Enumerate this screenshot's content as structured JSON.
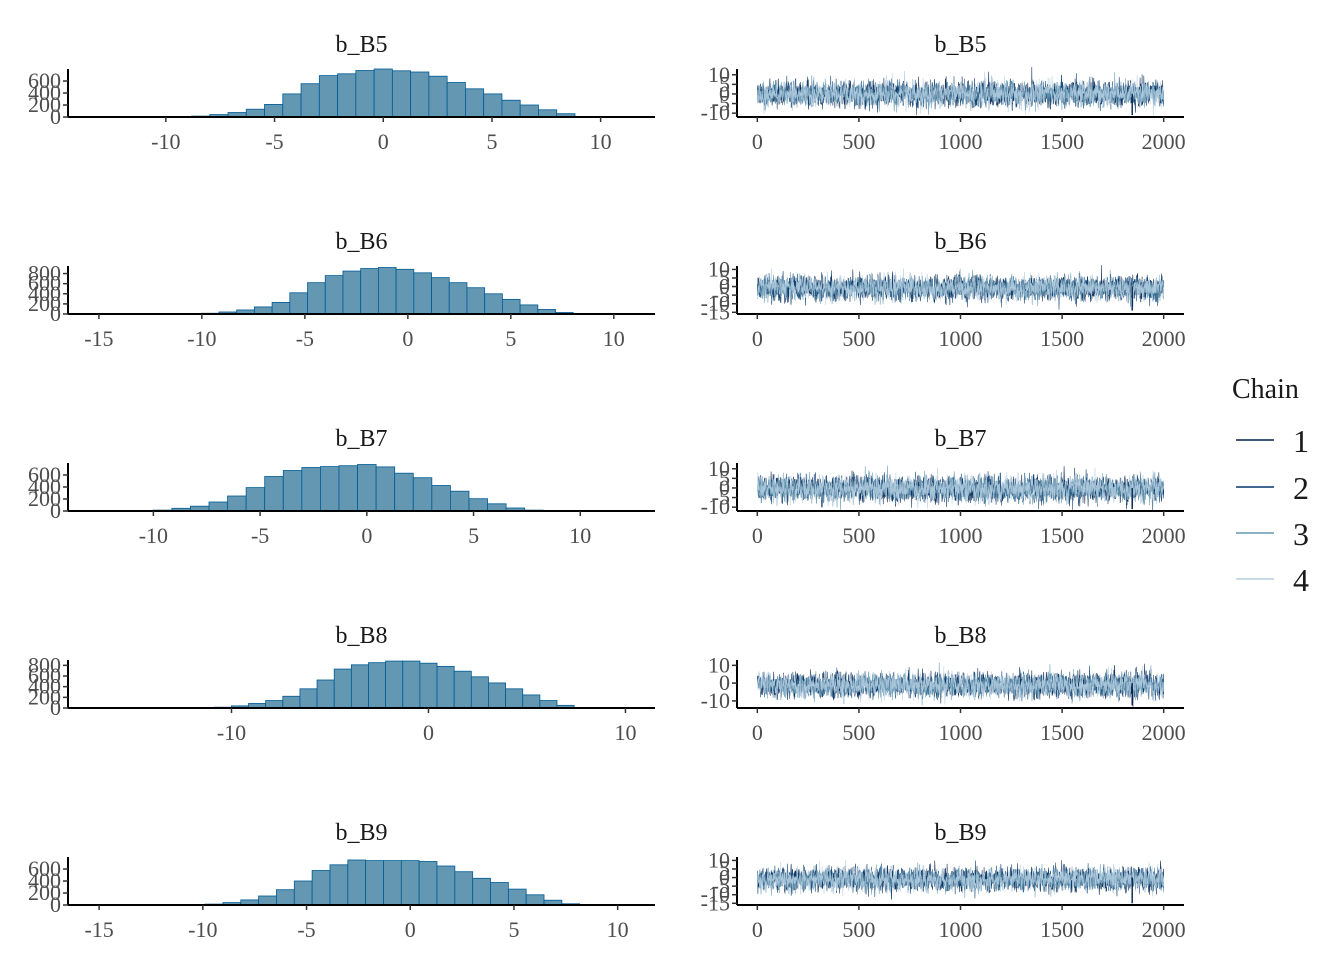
{
  "colors": {
    "bar_fill": "#6497b1",
    "bar_stroke": "#005b96",
    "chain_colors": [
      "#011f4b",
      "#03396c",
      "#6497b1",
      "#b3cde0"
    ]
  },
  "legend": {
    "title": "Chain",
    "labels": [
      "1",
      "2",
      "3",
      "4"
    ]
  },
  "chart_data": [
    {
      "type": "bar",
      "panel": "histogram",
      "title": "b_B5",
      "xlim": [
        -14.5,
        12.5
      ],
      "ylim": [
        0,
        800
      ],
      "xticks": [
        -10,
        -5,
        0,
        5,
        10
      ],
      "xtick_labels": [
        "-10",
        "-5",
        "0",
        "5",
        "10"
      ],
      "yticks": [
        0,
        200,
        400,
        600
      ],
      "ytick_labels": [
        "0",
        "200",
        "400",
        "600"
      ],
      "bin_width": 0.84,
      "bin_centers": [
        -8.4,
        -7.56,
        -6.72,
        -5.88,
        -5.04,
        -4.2,
        -3.36,
        -2.52,
        -1.68,
        -0.84,
        0,
        0.84,
        1.68,
        2.52,
        3.36,
        4.2,
        5.04,
        5.88,
        6.72,
        7.56,
        8.4
      ],
      "values": [
        15,
        40,
        75,
        130,
        210,
        385,
        555,
        690,
        720,
        775,
        800,
        770,
        750,
        680,
        575,
        470,
        385,
        280,
        200,
        120,
        55
      ]
    },
    {
      "type": "line",
      "panel": "trace",
      "title": "b_B5",
      "xlim": [
        -100,
        2100
      ],
      "ylim": [
        -12,
        13
      ],
      "xticks": [
        0,
        500,
        1000,
        1500,
        2000
      ],
      "xtick_labels": [
        "0",
        "500",
        "1000",
        "1500",
        "2000"
      ],
      "yticks": [
        -10,
        -5,
        0,
        5,
        10
      ],
      "ytick_labels": [
        "-10",
        "-5",
        "0",
        "5",
        "10"
      ],
      "series": [
        {
          "name": "1",
          "mean": 0.2,
          "sd": 3.1,
          "n": 2000,
          "seed": 11
        },
        {
          "name": "2",
          "mean": 0.0,
          "sd": 3.1,
          "n": 2000,
          "seed": 12
        },
        {
          "name": "3",
          "mean": -0.1,
          "sd": 3.1,
          "n": 2000,
          "seed": 13
        },
        {
          "name": "4",
          "mean": 0.1,
          "sd": 3.1,
          "n": 2000,
          "seed": 14
        }
      ],
      "spike": {
        "x": 1845,
        "y": -11
      }
    },
    {
      "type": "bar",
      "panel": "histogram",
      "title": "b_B6",
      "xlim": [
        -16.5,
        12
      ],
      "ylim": [
        0,
        950
      ],
      "xticks": [
        -15,
        -10,
        -5,
        0,
        5,
        10
      ],
      "xtick_labels": [
        "-15",
        "-10",
        "-5",
        "0",
        "5",
        "10"
      ],
      "yticks": [
        0,
        200,
        400,
        600,
        800
      ],
      "ytick_labels": [
        "0",
        "200",
        "400",
        "600",
        "800"
      ],
      "bin_width": 0.86,
      "bin_centers": [
        -9.6,
        -8.74,
        -7.88,
        -7.02,
        -6.16,
        -5.3,
        -4.44,
        -3.58,
        -2.72,
        -1.86,
        -1.0,
        -0.14,
        0.72,
        1.58,
        2.44,
        3.3,
        4.16,
        5.02,
        5.88,
        6.74,
        7.6
      ],
      "values": [
        15,
        40,
        80,
        140,
        230,
        420,
        620,
        760,
        850,
        900,
        920,
        885,
        815,
        720,
        620,
        520,
        400,
        290,
        180,
        90,
        30
      ]
    },
    {
      "type": "line",
      "panel": "trace",
      "title": "b_B6",
      "xlim": [
        -100,
        2100
      ],
      "ylim": [
        -16,
        12
      ],
      "xticks": [
        0,
        500,
        1000,
        1500,
        2000
      ],
      "xtick_labels": [
        "0",
        "500",
        "1000",
        "1500",
        "2000"
      ],
      "yticks": [
        -15,
        -10,
        -5,
        0,
        5,
        10
      ],
      "ytick_labels": [
        "-15",
        "-10",
        "-5",
        "0",
        "5",
        "10"
      ],
      "series": [
        {
          "name": "1",
          "mean": -0.8,
          "sd": 3.3,
          "n": 2000,
          "seed": 21
        },
        {
          "name": "2",
          "mean": -1.0,
          "sd": 3.3,
          "n": 2000,
          "seed": 22
        },
        {
          "name": "3",
          "mean": -1.1,
          "sd": 3.3,
          "n": 2000,
          "seed": 23
        },
        {
          "name": "4",
          "mean": -0.9,
          "sd": 3.3,
          "n": 2000,
          "seed": 24
        }
      ],
      "spike": {
        "x": 1845,
        "y": -14
      }
    },
    {
      "type": "bar",
      "panel": "histogram",
      "title": "b_B7",
      "xlim": [
        -14,
        13.5
      ],
      "ylim": [
        0,
        800
      ],
      "xticks": [
        -10,
        -5,
        0,
        5,
        10
      ],
      "xtick_labels": [
        "-10",
        "-5",
        "0",
        "5",
        "10"
      ],
      "yticks": [
        0,
        200,
        400,
        600
      ],
      "ytick_labels": [
        "0",
        "200",
        "400",
        "600"
      ],
      "bin_width": 0.87,
      "bin_centers": [
        -9.57,
        -8.7,
        -7.83,
        -6.96,
        -6.09,
        -5.22,
        -4.35,
        -3.48,
        -2.61,
        -1.74,
        -0.87,
        0,
        0.87,
        1.74,
        2.61,
        3.48,
        4.35,
        5.22,
        6.09,
        6.96,
        7.83
      ],
      "values": [
        15,
        45,
        80,
        150,
        250,
        390,
        575,
        675,
        725,
        740,
        755,
        775,
        735,
        630,
        555,
        425,
        330,
        205,
        120,
        50,
        15
      ]
    },
    {
      "type": "line",
      "panel": "trace",
      "title": "b_B7",
      "xlim": [
        -100,
        2100
      ],
      "ylim": [
        -12,
        13
      ],
      "xticks": [
        0,
        500,
        1000,
        1500,
        2000
      ],
      "xtick_labels": [
        "0",
        "500",
        "1000",
        "1500",
        "2000"
      ],
      "yticks": [
        -10,
        -5,
        0,
        5,
        10
      ],
      "ytick_labels": [
        "-10",
        "-5",
        "0",
        "5",
        "10"
      ],
      "series": [
        {
          "name": "1",
          "mean": -0.3,
          "sd": 3.2,
          "n": 2000,
          "seed": 31
        },
        {
          "name": "2",
          "mean": -0.5,
          "sd": 3.2,
          "n": 2000,
          "seed": 32
        },
        {
          "name": "3",
          "mean": -0.6,
          "sd": 3.2,
          "n": 2000,
          "seed": 33
        },
        {
          "name": "4",
          "mean": -0.4,
          "sd": 3.2,
          "n": 2000,
          "seed": 34
        }
      ],
      "spike": {
        "x": 1845,
        "y": -11
      }
    },
    {
      "type": "bar",
      "panel": "histogram",
      "title": "b_B8",
      "xlim": [
        -18.3,
        11.5
      ],
      "ylim": [
        0,
        900
      ],
      "xticks": [
        -10,
        0,
        10
      ],
      "xtick_labels": [
        "-10",
        "0",
        "10"
      ],
      "yticks": [
        0,
        200,
        400,
        600,
        800
      ],
      "ytick_labels": [
        "0",
        "200",
        "400",
        "600",
        "800"
      ],
      "bin_width": 0.87,
      "bin_centers": [
        -10.44,
        -9.57,
        -8.7,
        -7.83,
        -6.96,
        -6.09,
        -5.22,
        -4.35,
        -3.48,
        -2.61,
        -1.74,
        -0.87,
        0,
        0.87,
        1.74,
        2.61,
        3.48,
        4.35,
        5.22,
        6.09,
        6.96
      ],
      "values": [
        15,
        40,
        85,
        140,
        220,
        360,
        525,
        730,
        810,
        850,
        880,
        880,
        840,
        780,
        690,
        585,
        470,
        360,
        245,
        140,
        50
      ]
    },
    {
      "type": "line",
      "panel": "trace",
      "title": "b_B8",
      "xlim": [
        -100,
        2100
      ],
      "ylim": [
        -14,
        13
      ],
      "xticks": [
        0,
        500,
        1000,
        1500,
        2000
      ],
      "xtick_labels": [
        "0",
        "500",
        "1000",
        "1500",
        "2000"
      ],
      "yticks": [
        -10,
        0,
        10
      ],
      "ytick_labels": [
        "-10",
        "0",
        "10"
      ],
      "series": [
        {
          "name": "1",
          "mean": -1.0,
          "sd": 3.3,
          "n": 2000,
          "seed": 41
        },
        {
          "name": "2",
          "mean": -1.3,
          "sd": 3.3,
          "n": 2000,
          "seed": 42
        },
        {
          "name": "3",
          "mean": -1.4,
          "sd": 3.3,
          "n": 2000,
          "seed": 43
        },
        {
          "name": "4",
          "mean": -1.2,
          "sd": 3.3,
          "n": 2000,
          "seed": 44
        }
      ],
      "spike": {
        "x": 1845,
        "y": -12.5
      }
    },
    {
      "type": "bar",
      "panel": "histogram",
      "title": "b_B9",
      "xlim": [
        -16.5,
        11.8
      ],
      "ylim": [
        0,
        800
      ],
      "xticks": [
        -15,
        -10,
        -5,
        0,
        5,
        10
      ],
      "xtick_labels": [
        "-15",
        "-10",
        "-5",
        "0",
        "5",
        "10"
      ],
      "yticks": [
        0,
        200,
        400,
        600
      ],
      "ytick_labels": [
        "0",
        "200",
        "400",
        "600"
      ],
      "bin_width": 0.86,
      "bin_centers": [
        -9.46,
        -8.6,
        -7.74,
        -6.88,
        -6.02,
        -5.16,
        -4.3,
        -3.44,
        -2.58,
        -1.72,
        -0.86,
        0,
        0.86,
        1.72,
        2.58,
        3.44,
        4.3,
        5.16,
        6.02,
        6.88,
        7.74
      ],
      "values": [
        15,
        40,
        85,
        150,
        255,
        400,
        575,
        670,
        750,
        740,
        740,
        740,
        725,
        650,
        555,
        445,
        375,
        265,
        170,
        80,
        20
      ]
    },
    {
      "type": "line",
      "panel": "trace",
      "title": "b_B9",
      "xlim": [
        -100,
        2100
      ],
      "ylim": [
        -16,
        12
      ],
      "xticks": [
        0,
        500,
        1000,
        1500,
        2000
      ],
      "xtick_labels": [
        "0",
        "500",
        "1000",
        "1500",
        "2000"
      ],
      "yticks": [
        -15,
        -10,
        -5,
        0,
        5,
        10
      ],
      "ytick_labels": [
        "-15",
        "-10",
        "-5",
        "0",
        "5",
        "10"
      ],
      "series": [
        {
          "name": "1",
          "mean": -0.9,
          "sd": 3.3,
          "n": 2000,
          "seed": 51
        },
        {
          "name": "2",
          "mean": -1.1,
          "sd": 3.3,
          "n": 2000,
          "seed": 52
        },
        {
          "name": "3",
          "mean": -1.2,
          "sd": 3.3,
          "n": 2000,
          "seed": 53
        },
        {
          "name": "4",
          "mean": -1.0,
          "sd": 3.3,
          "n": 2000,
          "seed": 54
        }
      ],
      "spike": {
        "x": 1845,
        "y": -15
      }
    }
  ]
}
